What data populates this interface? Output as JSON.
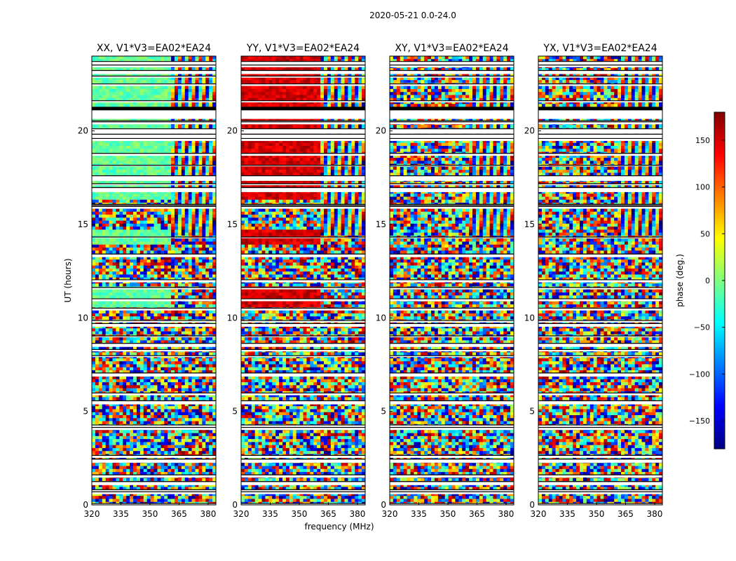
{
  "figure": {
    "suptitle": "2020-05-21 0.0-24.0",
    "xlabel": "frequency (MHz)",
    "ylabel": "UT (hours)"
  },
  "colorbar": {
    "label": "phase (deg.)",
    "range": [
      -180,
      180
    ],
    "ticks": [
      "150",
      "100",
      "50",
      "0",
      "−50",
      "−100",
      "−150"
    ],
    "tick_values": [
      150,
      100,
      50,
      0,
      -50,
      -100,
      -150
    ],
    "colormap": "jet",
    "colors": [
      "#00007f",
      "#0000ff",
      "#007fff",
      "#00ffff",
      "#7fff7f",
      "#ffff00",
      "#ff7f00",
      "#ff0000",
      "#7f0000"
    ]
  },
  "chart_data": [
    {
      "type": "heatmap",
      "title": "XX, V1*V3=EA02*EA24",
      "x_ticks": [
        "320",
        "335",
        "350",
        "365",
        "380"
      ],
      "x_tick_values": [
        320,
        335,
        350,
        365,
        380
      ],
      "y_ticks": [
        "0",
        "5",
        "10",
        "15",
        "20"
      ],
      "y_tick_values": [
        0,
        5,
        10,
        15,
        20
      ],
      "xlim": [
        320,
        384
      ],
      "ylim": [
        0,
        24
      ],
      "z": "phase (deg.)",
      "dominant_phase_low_freq": -10
    },
    {
      "type": "heatmap",
      "title": "YY, V1*V3=EA02*EA24",
      "x_ticks": [
        "320",
        "335",
        "350",
        "365",
        "380"
      ],
      "x_tick_values": [
        320,
        335,
        350,
        365,
        380
      ],
      "y_ticks": [
        "0",
        "5",
        "10",
        "15",
        "20"
      ],
      "y_tick_values": [
        0,
        5,
        10,
        15,
        20
      ],
      "xlim": [
        320,
        384
      ],
      "ylim": [
        0,
        24
      ],
      "z": "phase (deg.)",
      "dominant_phase_low_freq": 150
    },
    {
      "type": "heatmap",
      "title": "XY, V1*V3=EA02*EA24",
      "x_ticks": [
        "320",
        "335",
        "350",
        "365",
        "380"
      ],
      "x_tick_values": [
        320,
        335,
        350,
        365,
        380
      ],
      "y_ticks": [
        "0",
        "5",
        "10",
        "15",
        "20"
      ],
      "y_tick_values": [
        0,
        5,
        10,
        15,
        20
      ],
      "xlim": [
        320,
        384
      ],
      "ylim": [
        0,
        24
      ],
      "z": "phase (deg.)",
      "dominant_phase_low_freq": null
    },
    {
      "type": "heatmap",
      "title": "YX, V1*V3=EA02*EA24",
      "x_ticks": [
        "320",
        "335",
        "350",
        "365",
        "380"
      ],
      "x_tick_values": [
        320,
        335,
        350,
        365,
        380
      ],
      "y_ticks": [
        "0",
        "5",
        "10",
        "15",
        "20"
      ],
      "y_tick_values": [
        0,
        5,
        10,
        15,
        20
      ],
      "xlim": [
        320,
        384
      ],
      "ylim": [
        0,
        24
      ],
      "z": "phase (deg.)",
      "dominant_phase_low_freq": null
    }
  ]
}
